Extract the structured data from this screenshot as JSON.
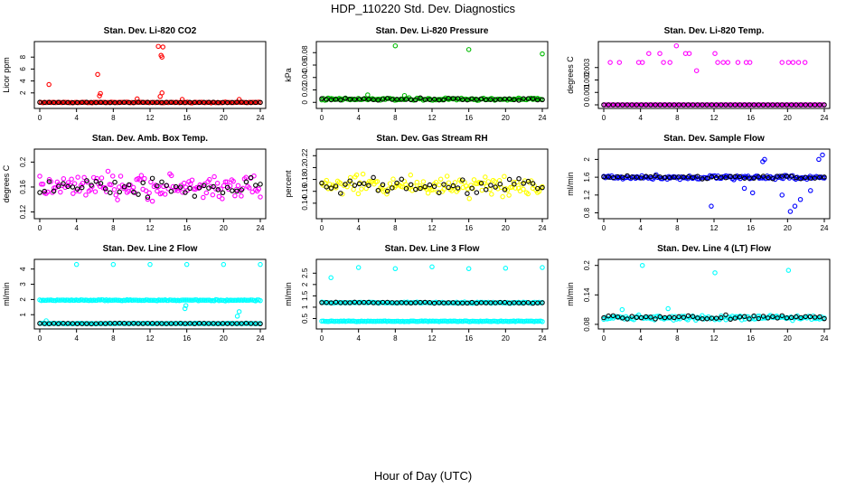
{
  "figure": {
    "title": "HDP_110220  Std. Dev. Diagnostics",
    "xlabel": "Hour of Day (UTC)"
  },
  "chart_data": [
    {
      "type": "scatter",
      "title": "Stan. Dev. Li-820 CO2",
      "ylabel": "Licor ppm",
      "color": "#ff0000",
      "xlim": [
        0,
        24
      ],
      "ylim": [
        0,
        10
      ],
      "xticks": [
        0,
        4,
        8,
        12,
        16,
        20,
        24
      ],
      "yticks": [
        2,
        4,
        6,
        8
      ],
      "baseline": 0.4,
      "spread": 0.08,
      "black_offset": 0,
      "outliers": [
        [
          1.0,
          3.4
        ],
        [
          6.3,
          5.1
        ],
        [
          6.5,
          1.5
        ],
        [
          6.6,
          1.9
        ],
        [
          10.6,
          1.0
        ],
        [
          12.9,
          9.8
        ],
        [
          13.2,
          8.3
        ],
        [
          13.3,
          8.0
        ],
        [
          13.4,
          9.7
        ],
        [
          13.1,
          1.4
        ],
        [
          13.3,
          2.0
        ],
        [
          15.5,
          0.9
        ],
        [
          21.7,
          0.9
        ]
      ]
    },
    {
      "type": "scatter",
      "title": "Stan. Dev. Li-820 Pressure",
      "ylabel": "kPa",
      "color": "#00bb00",
      "xlim": [
        0,
        24
      ],
      "ylim": [
        -0.004,
        0.092
      ],
      "xticks": [
        0,
        4,
        8,
        12,
        16,
        20,
        24
      ],
      "yticks": [
        0.0,
        0.02,
        0.04,
        0.06,
        0.08
      ],
      "baseline": 0.005,
      "spread": 0.003,
      "black_offset": 0,
      "outliers": [
        [
          8.0,
          0.091
        ],
        [
          16.0,
          0.085
        ],
        [
          24.0,
          0.078
        ],
        [
          5.0,
          0.012
        ],
        [
          9.0,
          0.011
        ]
      ]
    },
    {
      "type": "scatter",
      "title": "Stan. Dev. Li-820 Temp.",
      "ylabel": "degrees C",
      "color": "#ff00ff",
      "xlim": [
        0,
        24
      ],
      "ylim": [
        0,
        0.0048
      ],
      "xticks": [
        0,
        4,
        8,
        12,
        16,
        20,
        24
      ],
      "yticks": [
        0.0,
        0.001,
        0.002,
        0.003
      ],
      "baseline": 0,
      "spread": 0,
      "black_offset": 0,
      "step": 0.5,
      "outliers": [
        [
          0.7,
          0.00341
        ],
        [
          1.7,
          0.00341
        ],
        [
          3.8,
          0.00341
        ],
        [
          4.2,
          0.00341
        ],
        [
          4.9,
          0.00413
        ],
        [
          6.1,
          0.00413
        ],
        [
          6.5,
          0.00341
        ],
        [
          7.2,
          0.00341
        ],
        [
          7.9,
          0.00475
        ],
        [
          8.9,
          0.00413
        ],
        [
          9.3,
          0.00413
        ],
        [
          10.1,
          0.00275
        ],
        [
          12.1,
          0.00413
        ],
        [
          12.4,
          0.00341
        ],
        [
          13.0,
          0.00341
        ],
        [
          13.5,
          0.00341
        ],
        [
          14.6,
          0.00341
        ],
        [
          15.5,
          0.00341
        ],
        [
          15.9,
          0.00341
        ],
        [
          19.4,
          0.00341
        ],
        [
          20.1,
          0.00341
        ],
        [
          20.6,
          0.00341
        ],
        [
          21.2,
          0.00341
        ],
        [
          21.9,
          0.00341
        ]
      ]
    },
    {
      "type": "scatter",
      "title": "Stan. Dev. Amb. Box Temp.",
      "ylabel": "degrees C",
      "color": "#ff00ff",
      "xlim": [
        0,
        24
      ],
      "ylim": [
        0.115,
        0.215
      ],
      "xticks": [
        0,
        4,
        8,
        12,
        16,
        20,
        24
      ],
      "yticks": [
        0.12,
        0.16,
        0.2
      ],
      "baseline": 0.16,
      "spread": 0.028,
      "black_offset": 0,
      "outliers": []
    },
    {
      "type": "scatter",
      "title": "Stan. Dev. Gas Stream RH",
      "ylabel": "percent",
      "color": "#ffff00",
      "xlim": [
        0,
        24
      ],
      "ylim": [
        0.12,
        0.225
      ],
      "xticks": [
        0,
        4,
        8,
        12,
        16,
        20,
        24
      ],
      "yticks": [
        0.14,
        0.16,
        0.18,
        0.2,
        0.22
      ],
      "baseline": 0.17,
      "spread": 0.025,
      "black_offset": 0,
      "outliers": []
    },
    {
      "type": "scatter",
      "title": "Stan. Dev. Sample Flow",
      "ylabel": "ml/min",
      "color": "#0000ff",
      "xlim": [
        0,
        24
      ],
      "ylim": [
        0.75,
        2.15
      ],
      "xticks": [
        0,
        4,
        8,
        12,
        16,
        20,
        24
      ],
      "yticks": [
        0.8,
        1.2,
        1.6,
        2.0
      ],
      "baseline": 1.6,
      "spread": 0.07,
      "black_offset": 0,
      "outliers": [
        [
          11.7,
          0.95
        ],
        [
          15.3,
          1.35
        ],
        [
          16.2,
          1.25
        ],
        [
          17.3,
          1.95
        ],
        [
          17.5,
          2.0
        ],
        [
          19.4,
          1.2
        ],
        [
          20.3,
          0.83
        ],
        [
          20.8,
          0.95
        ],
        [
          21.4,
          1.1
        ],
        [
          22.5,
          1.3
        ],
        [
          23.4,
          2.0
        ],
        [
          23.8,
          2.1
        ]
      ]
    },
    {
      "type": "scatter",
      "title": "Stan. Dev. Line 2 Flow",
      "ylabel": "ml/min",
      "color": "#00ffff",
      "xlim": [
        0,
        24
      ],
      "ylim": [
        0.3,
        4.4
      ],
      "xticks": [
        0,
        4,
        8,
        12,
        16,
        20,
        24
      ],
      "yticks": [
        1,
        2,
        3,
        4
      ],
      "baseline": 1.95,
      "spread": 0.05,
      "black_offset": -1.55,
      "second_baseline": 0.42,
      "outliers": [
        [
          4.0,
          4.3
        ],
        [
          8.0,
          4.3
        ],
        [
          12.0,
          4.3
        ],
        [
          16.0,
          4.3
        ],
        [
          20.0,
          4.3
        ],
        [
          24.0,
          4.3
        ],
        [
          0.7,
          0.6
        ],
        [
          15.8,
          1.4
        ],
        [
          15.9,
          1.6
        ],
        [
          21.5,
          0.9
        ],
        [
          21.7,
          1.2
        ]
      ]
    },
    {
      "type": "scatter",
      "title": "Stan. Dev. Line 3 Flow",
      "ylabel": "ml/min",
      "color": "#00ffff",
      "xlim": [
        0,
        24
      ],
      "ylim": [
        0.2,
        2.95
      ],
      "xticks": [
        0,
        4,
        8,
        12,
        16,
        20,
        24
      ],
      "yticks": [
        0.5,
        1.0,
        1.5,
        2.0,
        2.5
      ],
      "baseline": 1.2,
      "spread": 0.04,
      "black_offset": 0,
      "second_baseline": 0.38,
      "outliers": [
        [
          1.0,
          2.3
        ],
        [
          4.0,
          2.75
        ],
        [
          8.0,
          2.7
        ],
        [
          12.0,
          2.78
        ],
        [
          16.0,
          2.7
        ],
        [
          20.0,
          2.72
        ],
        [
          24.0,
          2.75
        ]
      ]
    },
    {
      "type": "scatter",
      "title": "Stan. Dev. Line 4 (LT) Flow",
      "ylabel": "ml/min",
      "color": "#00ffff",
      "xlim": [
        0,
        24
      ],
      "ylim": [
        0.078,
        0.205
      ],
      "xticks": [
        0,
        4,
        8,
        12,
        16,
        20,
        24
      ],
      "yticks": [
        0.08,
        0.14,
        0.2
      ],
      "baseline": 0.094,
      "spread": 0.007,
      "black_offset": 0,
      "outliers": [
        [
          4.2,
          0.2
        ],
        [
          12.1,
          0.185
        ],
        [
          20.1,
          0.19
        ],
        [
          2.0,
          0.11
        ],
        [
          7.0,
          0.112
        ]
      ]
    }
  ]
}
